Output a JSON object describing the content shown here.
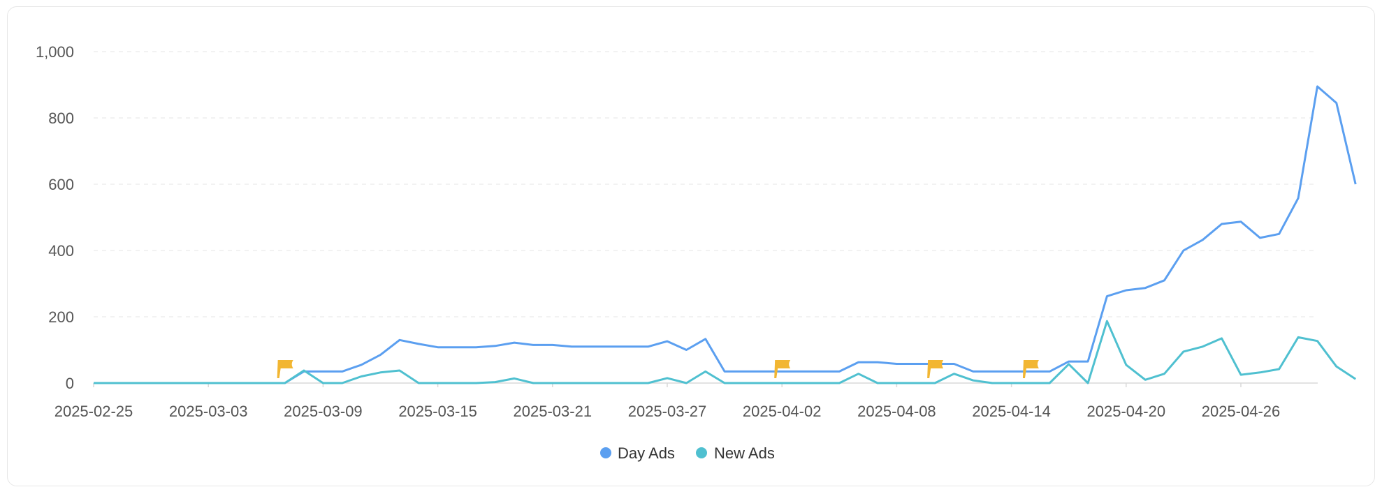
{
  "chart_data": {
    "type": "line",
    "ylim": [
      0,
      1000
    ],
    "yticks": [
      "0",
      "200",
      "400",
      "600",
      "800",
      "1,000"
    ],
    "ytick_values": [
      0,
      200,
      400,
      600,
      800,
      1000
    ],
    "grid": true,
    "legend_position": "bottom-center",
    "x_start": "2025-02-25",
    "x_end": "2025-04-30",
    "xticks": [
      "2025-02-25",
      "2025-03-03",
      "2025-03-09",
      "2025-03-15",
      "2025-03-21",
      "2025-03-27",
      "2025-04-02",
      "2025-04-08",
      "2025-04-14",
      "2025-04-20",
      "2025-04-26"
    ],
    "series": [
      {
        "name": "Day Ads",
        "color": "#5b9ff0",
        "points": [
          [
            "2025-02-25",
            0
          ],
          [
            "2025-02-26",
            0
          ],
          [
            "2025-02-27",
            0
          ],
          [
            "2025-02-28",
            0
          ],
          [
            "2025-03-01",
            0
          ],
          [
            "2025-03-02",
            0
          ],
          [
            "2025-03-03",
            0
          ],
          [
            "2025-03-04",
            0
          ],
          [
            "2025-03-05",
            0
          ],
          [
            "2025-03-06",
            0
          ],
          [
            "2025-03-07",
            0
          ],
          [
            "2025-03-08",
            35
          ],
          [
            "2025-03-09",
            35
          ],
          [
            "2025-03-10",
            35
          ],
          [
            "2025-03-11",
            55
          ],
          [
            "2025-03-12",
            85
          ],
          [
            "2025-03-13",
            130
          ],
          [
            "2025-03-14",
            118
          ],
          [
            "2025-03-15",
            108
          ],
          [
            "2025-03-16",
            108
          ],
          [
            "2025-03-17",
            108
          ],
          [
            "2025-03-18",
            112
          ],
          [
            "2025-03-19",
            122
          ],
          [
            "2025-03-20",
            115
          ],
          [
            "2025-03-21",
            115
          ],
          [
            "2025-03-22",
            110
          ],
          [
            "2025-03-23",
            110
          ],
          [
            "2025-03-24",
            110
          ],
          [
            "2025-03-25",
            110
          ],
          [
            "2025-03-26",
            110
          ],
          [
            "2025-03-27",
            126
          ],
          [
            "2025-03-28",
            100
          ],
          [
            "2025-03-29",
            133
          ],
          [
            "2025-03-30",
            35
          ],
          [
            "2025-03-31",
            35
          ],
          [
            "2025-04-01",
            35
          ],
          [
            "2025-04-02",
            35
          ],
          [
            "2025-04-03",
            35
          ],
          [
            "2025-04-04",
            35
          ],
          [
            "2025-04-05",
            35
          ],
          [
            "2025-04-06",
            63
          ],
          [
            "2025-04-07",
            63
          ],
          [
            "2025-04-08",
            58
          ],
          [
            "2025-04-09",
            58
          ],
          [
            "2025-04-10",
            58
          ],
          [
            "2025-04-11",
            58
          ],
          [
            "2025-04-12",
            35
          ],
          [
            "2025-04-13",
            35
          ],
          [
            "2025-04-14",
            35
          ],
          [
            "2025-04-15",
            35
          ],
          [
            "2025-04-16",
            35
          ],
          [
            "2025-04-17",
            65
          ],
          [
            "2025-04-18",
            65
          ],
          [
            "2025-04-19",
            262
          ],
          [
            "2025-04-20",
            280
          ],
          [
            "2025-04-21",
            287
          ],
          [
            "2025-04-22",
            310
          ],
          [
            "2025-04-23",
            400
          ],
          [
            "2025-04-24",
            432
          ],
          [
            "2025-04-25",
            480
          ],
          [
            "2025-04-26",
            487
          ],
          [
            "2025-04-27",
            438
          ],
          [
            "2025-04-28",
            450
          ],
          [
            "2025-04-29",
            558
          ],
          [
            "2025-04-30",
            895
          ],
          [
            "2025-05-01",
            845
          ],
          [
            "2025-05-02",
            600
          ]
        ]
      },
      {
        "name": "New Ads",
        "color": "#4fc0d0",
        "points": [
          [
            "2025-02-25",
            0
          ],
          [
            "2025-02-26",
            0
          ],
          [
            "2025-02-27",
            0
          ],
          [
            "2025-02-28",
            0
          ],
          [
            "2025-03-01",
            0
          ],
          [
            "2025-03-02",
            0
          ],
          [
            "2025-03-03",
            0
          ],
          [
            "2025-03-04",
            0
          ],
          [
            "2025-03-05",
            0
          ],
          [
            "2025-03-06",
            0
          ],
          [
            "2025-03-07",
            0
          ],
          [
            "2025-03-08",
            38
          ],
          [
            "2025-03-09",
            0
          ],
          [
            "2025-03-10",
            0
          ],
          [
            "2025-03-11",
            20
          ],
          [
            "2025-03-12",
            32
          ],
          [
            "2025-03-13",
            38
          ],
          [
            "2025-03-14",
            0
          ],
          [
            "2025-03-15",
            0
          ],
          [
            "2025-03-16",
            0
          ],
          [
            "2025-03-17",
            0
          ],
          [
            "2025-03-18",
            3
          ],
          [
            "2025-03-19",
            14
          ],
          [
            "2025-03-20",
            0
          ],
          [
            "2025-03-21",
            0
          ],
          [
            "2025-03-22",
            0
          ],
          [
            "2025-03-23",
            0
          ],
          [
            "2025-03-24",
            0
          ],
          [
            "2025-03-25",
            0
          ],
          [
            "2025-03-26",
            0
          ],
          [
            "2025-03-27",
            15
          ],
          [
            "2025-03-28",
            0
          ],
          [
            "2025-03-29",
            35
          ],
          [
            "2025-03-30",
            0
          ],
          [
            "2025-03-31",
            0
          ],
          [
            "2025-04-01",
            0
          ],
          [
            "2025-04-02",
            0
          ],
          [
            "2025-04-03",
            0
          ],
          [
            "2025-04-04",
            0
          ],
          [
            "2025-04-05",
            0
          ],
          [
            "2025-04-06",
            28
          ],
          [
            "2025-04-07",
            0
          ],
          [
            "2025-04-08",
            0
          ],
          [
            "2025-04-09",
            0
          ],
          [
            "2025-04-10",
            0
          ],
          [
            "2025-04-11",
            28
          ],
          [
            "2025-04-12",
            8
          ],
          [
            "2025-04-13",
            0
          ],
          [
            "2025-04-14",
            0
          ],
          [
            "2025-04-15",
            0
          ],
          [
            "2025-04-16",
            0
          ],
          [
            "2025-04-17",
            57
          ],
          [
            "2025-04-18",
            0
          ],
          [
            "2025-04-19",
            187
          ],
          [
            "2025-04-20",
            55
          ],
          [
            "2025-04-21",
            10
          ],
          [
            "2025-04-22",
            28
          ],
          [
            "2025-04-23",
            95
          ],
          [
            "2025-04-24",
            110
          ],
          [
            "2025-04-25",
            135
          ],
          [
            "2025-04-26",
            25
          ],
          [
            "2025-04-27",
            32
          ],
          [
            "2025-04-28",
            42
          ],
          [
            "2025-04-29",
            138
          ],
          [
            "2025-04-30",
            127
          ],
          [
            "2025-05-01",
            50
          ],
          [
            "2025-05-02",
            12
          ]
        ]
      }
    ],
    "markers": [
      {
        "type": "flag",
        "date": "2025-03-07",
        "value": 40
      },
      {
        "type": "flag",
        "date": "2025-04-02",
        "value": 40
      },
      {
        "type": "flag",
        "date": "2025-04-10",
        "value": 40
      },
      {
        "type": "flag",
        "date": "2025-04-15",
        "value": 40
      }
    ],
    "marker_color": "#f2b632"
  }
}
